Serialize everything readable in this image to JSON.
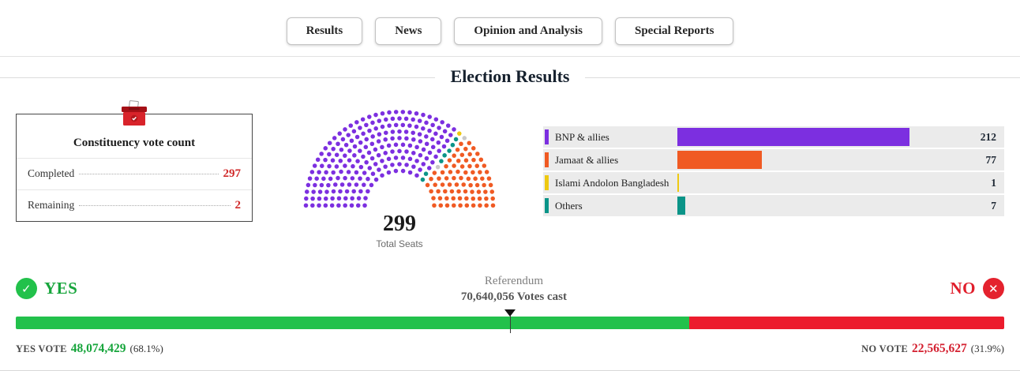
{
  "nav": {
    "items": [
      {
        "label": "Results"
      },
      {
        "label": "News"
      },
      {
        "label": "Opinion and Analysis"
      },
      {
        "label": "Special Reports"
      }
    ]
  },
  "title": "Election Results",
  "constituency_card": {
    "title": "Constituency vote count",
    "rows": [
      {
        "label": "Completed",
        "value": "297"
      },
      {
        "label": "Remaining",
        "value": "2"
      }
    ]
  },
  "parliament": {
    "total_seats": "299",
    "total_label": "Total Seats"
  },
  "chart_data": [
    {
      "type": "parliament",
      "title": "Election Results",
      "total_seats": 299,
      "series": [
        {
          "name": "BNP & allies",
          "seats": 212,
          "color": "#7c2fe0"
        },
        {
          "name": "Islami Andolon Bangladesh",
          "seats": 1,
          "color": "#eec911"
        },
        {
          "name": "Others",
          "seats": 7,
          "color": "#0b9488"
        },
        {
          "name": "Remaining",
          "seats": 2,
          "color": "#c9c9c9"
        },
        {
          "name": "Jamaat & allies",
          "seats": 77,
          "color": "#f05a23"
        }
      ]
    },
    {
      "type": "bar",
      "categories": [
        "BNP & allies",
        "Jamaat & allies",
        "Islami Andolon Bangladesh",
        "Others"
      ],
      "values": [
        212,
        77,
        1,
        7
      ],
      "colors": [
        "#7c2fe0",
        "#f05a23",
        "#eec911",
        "#0b9488"
      ],
      "xlim": [
        0,
        299
      ],
      "legend_position": "left",
      "grid": false
    },
    {
      "type": "bar",
      "title": "Referendum",
      "categories": [
        "YES",
        "NO"
      ],
      "values": [
        48074429,
        22565627
      ],
      "percents": [
        68.1,
        31.9
      ],
      "total_label": "70,640,056 Votes cast",
      "colors": [
        "#22c14b",
        "#ec1c2d"
      ]
    }
  ],
  "referendum": {
    "yes_label": "YES",
    "no_label": "NO",
    "title": "Referendum",
    "votes_cast": "70,640,056 Votes cast",
    "yes_vote_label": "YES VOTE",
    "yes_value": "48,074,429",
    "yes_percent": "(68.1%)",
    "no_vote_label": "NO VOTE",
    "no_value": "22,565,627",
    "no_percent": "(31.9%)",
    "yes_share": 68.1,
    "no_share": 31.9
  },
  "icons": {
    "check": "✓",
    "cross": "✕"
  }
}
